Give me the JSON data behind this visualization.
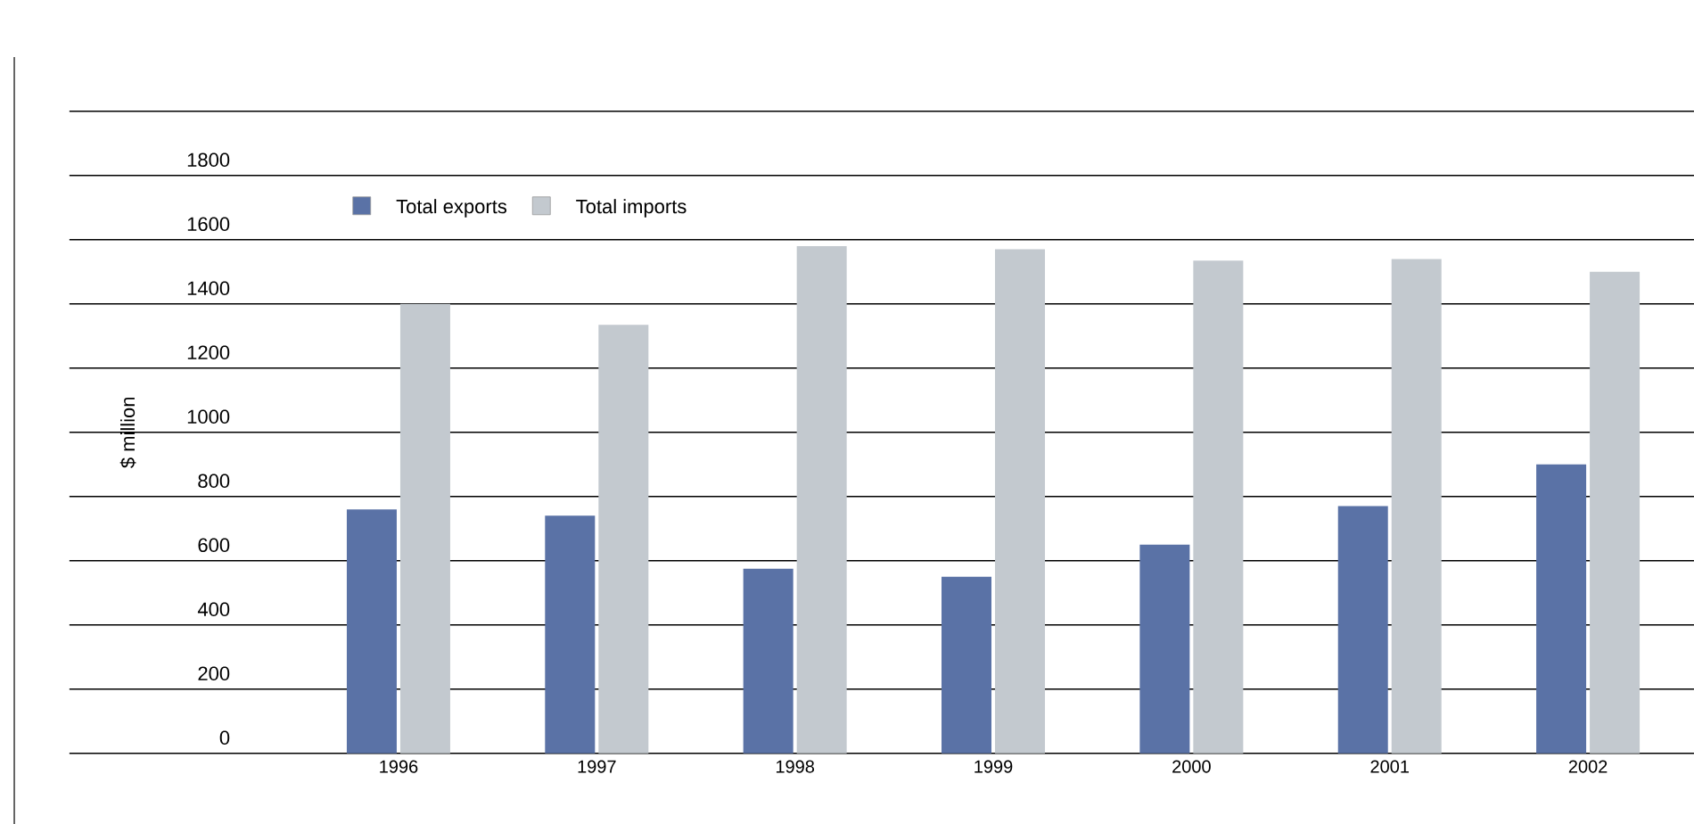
{
  "chart_data": {
    "type": "bar",
    "ylabel": "$ million",
    "categories": [
      "1996",
      "1997",
      "1998",
      "1999",
      "2000",
      "2001",
      "2002"
    ],
    "series": [
      {
        "name": "Total exports",
        "color": "#5a72a6",
        "values": [
          760,
          740,
          575,
          550,
          650,
          770,
          900
        ]
      },
      {
        "name": "Total imports",
        "color": "#c3c9cf",
        "values": [
          1400,
          1335,
          1580,
          1570,
          1535,
          1540,
          1500
        ]
      }
    ],
    "ylim": [
      0,
      2000
    ],
    "yticks": [
      0,
      200,
      400,
      600,
      800,
      1000,
      1200,
      1400,
      1600,
      1800,
      {
        "value": 2000,
        "label": null
      }
    ],
    "grid": "y",
    "legend": "top left"
  }
}
